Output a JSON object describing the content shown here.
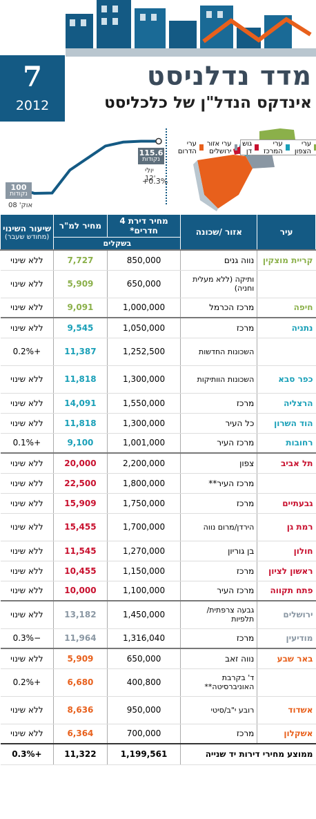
{
  "header": {
    "issue_number": "7",
    "year": "2012",
    "title": "מדד נדלניסט",
    "subtitle_prefix": "אינדקס הנדל\"ן של",
    "subtitle_brand": "כלכליסט"
  },
  "legend": [
    {
      "label": "ערי הצפון",
      "color": "#8bb04a"
    },
    {
      "label": "ערי המרכז",
      "color": "#1aa0b8"
    },
    {
      "label": "גוש דן",
      "color": "#c8102e"
    },
    {
      "label": "ערי אזור ירושלים",
      "color": "#8a97a3"
    },
    {
      "label": "ערי הדרום",
      "color": "#e8601c"
    }
  ],
  "index_chart": {
    "start_value": "100",
    "start_unit": "נקודות",
    "start_date": "אוק' 08",
    "end_value": "115.6",
    "end_unit": "נקודות",
    "end_date": "יולי 12'",
    "end_change": "+0.3%"
  },
  "chart_data": {
    "type": "line",
    "x": [
      "אוק' 08",
      "",
      "",
      "",
      "",
      "",
      "",
      "",
      "יולי 12'"
    ],
    "values": [
      100,
      98.3,
      98.4,
      106,
      110,
      114,
      115.3,
      115.6,
      115.6
    ],
    "annotations": [
      "100 נקודות",
      "115.6 נקודות",
      "+0.3%"
    ]
  },
  "table": {
    "headers": {
      "city": "עיר",
      "area": "אזור /שכונה",
      "price": "מחיר דירת 4 חדרים*",
      "ppm": "מחיר למ\"ר",
      "change": "שיעור השינוי",
      "change_sub": "(מחודש שעבר)",
      "currency": "בשקלים"
    },
    "rows": [
      {
        "city": "קריית מוצקין",
        "area": "נווה גנים",
        "price": "850,000",
        "ppm": "7,727",
        "change": "ללא שינוי",
        "color": "#8bb04a"
      },
      {
        "city": "",
        "area": "ותיקה (ללא מעלית וחניה)",
        "price": "650,000",
        "ppm": "5,909",
        "change": "ללא שינוי",
        "color": "#8bb04a"
      },
      {
        "city": "חיפה",
        "area": "מרכז הכרמל",
        "price": "1,000,000",
        "ppm": "9,091",
        "change": "ללא שינוי",
        "color": "#8bb04a"
      },
      {
        "city": "נתניה",
        "area": "מרכז",
        "price": "1,050,000",
        "ppm": "9,545",
        "change": "ללא שינוי",
        "color": "#1aa0b8"
      },
      {
        "city": "",
        "area": "השכונות החדשות",
        "price": "1,252,500",
        "ppm": "11,387",
        "change": "+0.2%",
        "color": "#1aa0b8"
      },
      {
        "city": "כפר סבא",
        "area": "השכונות הוותיקות",
        "price": "1,300,000",
        "ppm": "11,818",
        "change": "ללא שינוי",
        "color": "#1aa0b8"
      },
      {
        "city": "הרצליה",
        "area": "מרכז",
        "price": "1,550,000",
        "ppm": "14,091",
        "change": "ללא שינוי",
        "color": "#1aa0b8"
      },
      {
        "city": "הוד השרון",
        "area": "כל העיר",
        "price": "1,300,000",
        "ppm": "11,818",
        "change": "ללא שינוי",
        "color": "#1aa0b8"
      },
      {
        "city": "רחובות",
        "area": "מרכז העיר",
        "price": "1,001,000",
        "ppm": "9,100",
        "change": "+0.1%",
        "color": "#1aa0b8"
      },
      {
        "city": "תל אביב",
        "area": "צפון",
        "price": "2,200,000",
        "ppm": "20,000",
        "change": "ללא שינוי",
        "color": "#c8102e"
      },
      {
        "city": "",
        "area": "מרכז העיר**",
        "price": "1,800,000",
        "ppm": "22,500",
        "change": "ללא שינוי",
        "color": "#c8102e"
      },
      {
        "city": "גבעתיים",
        "area": "מרכז",
        "price": "1,750,000",
        "ppm": "15,909",
        "change": "ללא שינוי",
        "color": "#c8102e"
      },
      {
        "city": "רמת גן",
        "area": "הירדן/מרום נווה",
        "price": "1,700,000",
        "ppm": "15,455",
        "change": "ללא שינוי",
        "color": "#c8102e"
      },
      {
        "city": "חולון",
        "area": "בן גוריון",
        "price": "1,270,000",
        "ppm": "11,545",
        "change": "ללא שינוי",
        "color": "#c8102e"
      },
      {
        "city": "ראשון לציון",
        "area": "מרכז",
        "price": "1,150,000",
        "ppm": "10,455",
        "change": "ללא שינוי",
        "color": "#c8102e"
      },
      {
        "city": "פתח תקווה",
        "area": "מרכז העיר",
        "price": "1,100,000",
        "ppm": "10,000",
        "change": "ללא שינוי",
        "color": "#c8102e"
      },
      {
        "city": "ירושלים",
        "area": "גבעה צרפתית/ תלפיות",
        "price": "1,450,000",
        "ppm": "13,182",
        "change": "ללא שינוי",
        "color": "#8a97a3"
      },
      {
        "city": "מודיעין",
        "area": "מרכז",
        "price": "1,316,040",
        "ppm": "11,964",
        "change": "−0.3%",
        "color": "#8a97a3"
      },
      {
        "city": "באר שבע",
        "area": "נווה זאב",
        "price": "650,000",
        "ppm": "5,909",
        "change": "ללא שינוי",
        "color": "#e8601c"
      },
      {
        "city": "",
        "area": "ד' בקרבת האוניברסיטה**",
        "price": "400,800",
        "ppm": "6,680",
        "change": "+0.2%",
        "color": "#e8601c"
      },
      {
        "city": "אשדוד",
        "area": "רובע י\"ב/סיטי",
        "price": "950,000",
        "ppm": "8,636",
        "change": "ללא שינוי",
        "color": "#e8601c"
      },
      {
        "city": "אשקלון",
        "area": "מרכז",
        "price": "700,000",
        "ppm": "6,364",
        "change": "ללא שינוי",
        "color": "#e8601c"
      }
    ],
    "footer": {
      "label": "ממוצע מחירי דירות יד שנייה",
      "price": "1,199,561",
      "ppm": "11,322",
      "change": "+0.3%"
    }
  }
}
